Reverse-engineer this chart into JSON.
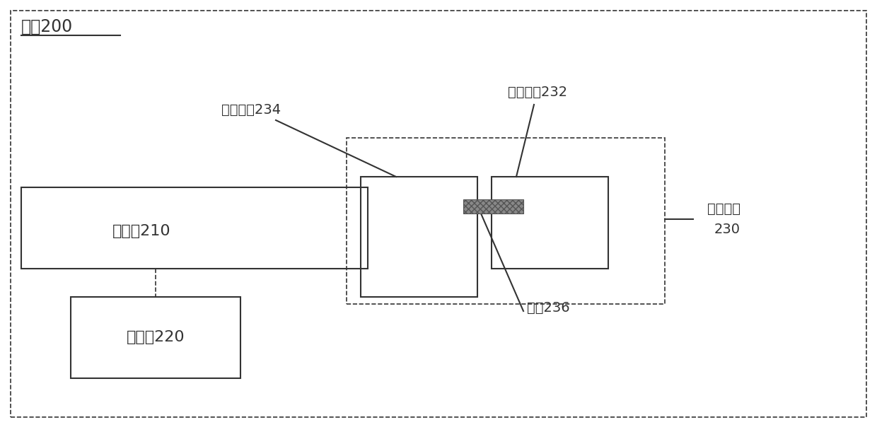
{
  "bg_color": "#ffffff",
  "line_color": "#333333",
  "fig_width": 12.4,
  "fig_height": 6.04,
  "dpi": 100,
  "labels": {
    "terminal": "终端200",
    "touch_screen": "触摸屏210",
    "controller": "控制器220",
    "touch_unit_line1": "触控单元",
    "touch_unit_line2": "230",
    "sensing_electrode": "感应电极234",
    "detection_electrode": "检测电极232",
    "wire": "导线236"
  },
  "font_size": 14,
  "title_font_size": 15
}
